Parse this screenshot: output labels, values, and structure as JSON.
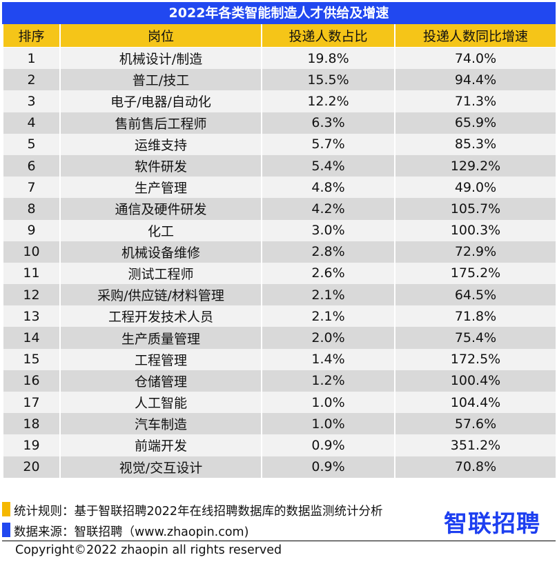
{
  "title": "2022年各类智能制造人才供给及增速",
  "colors": {
    "title_bg": "#2148f0",
    "header_bg": "#f5c518",
    "row_light": "#f2f2f2",
    "row_dark": "#d9d9d9"
  },
  "chart_data": {
    "type": "table",
    "title": "2022年各类智能制造人才供给及增速",
    "columns": [
      "排序",
      "岗位",
      "投递人数占比",
      "投递人数同比增速"
    ],
    "rows": [
      [
        "1",
        "机械设计/制造",
        "19.8%",
        "74.0%"
      ],
      [
        "2",
        "普工/技工",
        "15.5%",
        "94.4%"
      ],
      [
        "3",
        "电子/电器/自动化",
        "12.2%",
        "71.3%"
      ],
      [
        "4",
        "售前售后工程师",
        "6.3%",
        "65.9%"
      ],
      [
        "5",
        "运维支持",
        "5.7%",
        "85.3%"
      ],
      [
        "6",
        "软件研发",
        "5.4%",
        "129.2%"
      ],
      [
        "7",
        "生产管理",
        "4.8%",
        "49.0%"
      ],
      [
        "8",
        "通信及硬件研发",
        "4.2%",
        "105.7%"
      ],
      [
        "9",
        "化工",
        "3.0%",
        "100.3%"
      ],
      [
        "10",
        "机械设备维修",
        "2.8%",
        "72.9%"
      ],
      [
        "11",
        "测试工程师",
        "2.6%",
        "175.2%"
      ],
      [
        "12",
        "采购/供应链/材料管理",
        "2.1%",
        "64.5%"
      ],
      [
        "13",
        "工程开发技术人员",
        "2.1%",
        "71.8%"
      ],
      [
        "14",
        "生产质量管理",
        "2.0%",
        "75.4%"
      ],
      [
        "15",
        "工程管理",
        "1.4%",
        "172.5%"
      ],
      [
        "16",
        "仓储管理",
        "1.2%",
        "100.4%"
      ],
      [
        "17",
        "人工智能",
        "1.0%",
        "104.4%"
      ],
      [
        "18",
        "汽车制造",
        "1.0%",
        "57.6%"
      ],
      [
        "19",
        "前端开发",
        "0.9%",
        "351.2%"
      ],
      [
        "20",
        "视觉/交互设计",
        "0.9%",
        "70.8%"
      ]
    ]
  },
  "footer": {
    "rule": "统计规则：基于智联招聘2022年在线招聘数据库的数据监测统计分析",
    "source": "数据来源：智联招聘（www.zhaopin.com)",
    "logo": "智联招聘",
    "copyright": "Copyright©2022 zhaopin all rights reserved",
    "rule_marker_color": "#f5b800",
    "source_marker_color": "#2148f0"
  }
}
